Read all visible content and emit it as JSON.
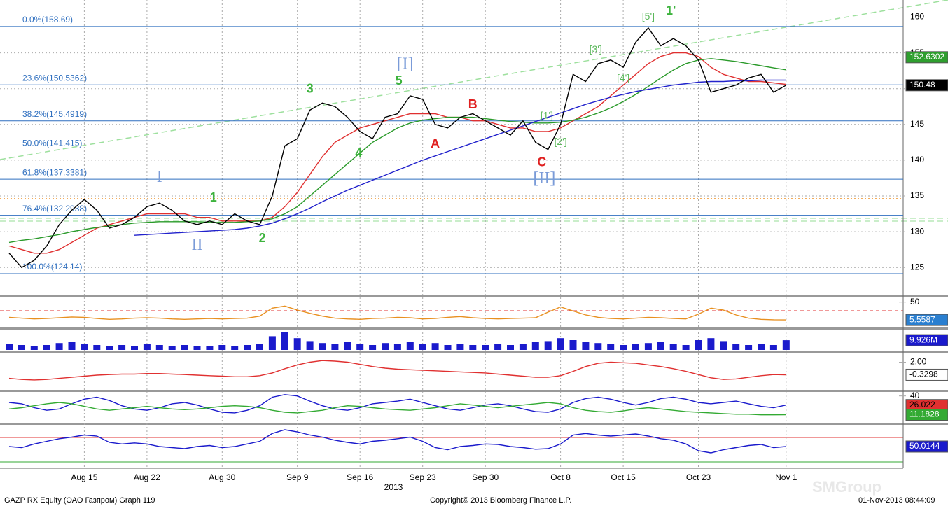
{
  "chart_data": [
    {
      "type": "line",
      "categories": [
        null,
        null,
        null,
        null,
        null,
        null,
        "Aug 15",
        null,
        null,
        null,
        null,
        "Aug 22",
        null,
        null,
        null,
        null,
        null,
        "Aug 30",
        null,
        null,
        null,
        null,
        null,
        "Sep 9",
        null,
        null,
        null,
        null,
        "Sep 16",
        null,
        null,
        null,
        null,
        "Sep 23",
        null,
        null,
        null,
        null,
        "Sep 30",
        null,
        null,
        null,
        null,
        null,
        "Oct 8",
        null,
        null,
        null,
        null,
        "Oct 15",
        null,
        null,
        null,
        null,
        null,
        "Oct 23",
        null,
        null,
        null,
        null,
        null,
        null,
        "Nov 1"
      ],
      "x_year_label": "2013",
      "ylim": [
        121.3,
        162.4
      ],
      "yticks": [
        125,
        130,
        135,
        140,
        145,
        150,
        155,
        160
      ],
      "grid": true,
      "series": [
        {
          "color": "#e03030",
          "values": [
            128,
            127.5,
            127,
            127,
            127.5,
            128.5,
            129.5,
            130.5,
            131,
            131.5,
            132,
            132.5,
            132.5,
            132.5,
            132.5,
            132,
            132,
            131.5,
            131.5,
            131.5,
            131.5,
            132,
            133.5,
            135.5,
            138,
            140.5,
            142.5,
            143.5,
            144.5,
            145,
            145.5,
            146,
            146.5,
            146.5,
            146.5,
            146,
            146,
            145.5,
            145.5,
            145,
            144.5,
            144.5,
            144,
            144,
            144.5,
            145.5,
            146.5,
            147.5,
            149,
            150.5,
            152,
            153.5,
            154.5,
            155,
            155,
            154.5,
            153,
            152,
            151.5,
            151,
            151,
            150.8,
            150.6
          ]
        },
        {
          "color": "#2a9a2a",
          "label_color": "#2e9e2e",
          "values": [
            128.5,
            128.8,
            129,
            129.3,
            129.6,
            130,
            130.3,
            130.6,
            130.8,
            131,
            131.2,
            131.3,
            131.4,
            131.4,
            131.4,
            131.4,
            131.3,
            131.3,
            131.3,
            131.4,
            131.5,
            131.8,
            132.5,
            133.5,
            135,
            136.5,
            138,
            139.5,
            141,
            142.5,
            143.5,
            144.5,
            145.2,
            145.6,
            145.8,
            146,
            146,
            146,
            145.8,
            145.6,
            145.4,
            145.3,
            145.2,
            145.2,
            145.3,
            145.6,
            146,
            146.6,
            147.3,
            148.2,
            149.2,
            150.3,
            151.5,
            152.6,
            153.5,
            154,
            154.2,
            154,
            153.8,
            153.5,
            153.2,
            152.9,
            152.6302
          ]
        },
        {
          "color": "#2222cc",
          "values": [
            null,
            null,
            null,
            null,
            null,
            null,
            null,
            null,
            null,
            null,
            129.5,
            129.6,
            129.7,
            129.8,
            129.9,
            130,
            130.1,
            130.2,
            130.3,
            130.5,
            130.8,
            131.2,
            131.8,
            132.5,
            133.3,
            134.2,
            135,
            135.8,
            136.5,
            137.2,
            137.9,
            138.6,
            139.3,
            140,
            140.6,
            141.2,
            141.8,
            142.4,
            143,
            143.6,
            144.2,
            144.8,
            145.4,
            146,
            146.6,
            147.2,
            147.8,
            148.3,
            148.8,
            149.2,
            149.6,
            149.9,
            150.2,
            150.5,
            150.7,
            150.9,
            151,
            151,
            151.1,
            151.1,
            151.2,
            151.2,
            151.2
          ]
        },
        {
          "color": "#000000",
          "label_color": "#000000",
          "values": [
            127,
            125,
            126,
            128,
            131,
            133,
            134.5,
            133,
            130.5,
            131,
            132,
            133.5,
            134,
            133,
            131.5,
            131,
            131.5,
            131,
            132.5,
            131.5,
            131,
            135,
            142,
            143,
            147,
            148,
            147.5,
            146,
            144,
            143,
            146,
            146.5,
            149,
            148.5,
            145,
            144.5,
            146,
            146.5,
            145.5,
            144.5,
            143.5,
            145.5,
            142.5,
            141.5,
            145,
            152,
            151,
            153.5,
            154,
            153,
            156.5,
            158.5,
            156,
            157,
            156,
            154,
            149.5,
            150,
            150.5,
            151.5,
            152,
            149.5,
            150.48
          ]
        }
      ],
      "fib_levels": [
        {
          "label": "0.0%(158.69)",
          "value": 158.69
        },
        {
          "label": "23.6%(150.5362)",
          "value": 150.5362
        },
        {
          "label": "38.2%(145.4919)",
          "value": 145.4919
        },
        {
          "label": "50.0%(141.415)",
          "value": 141.415
        },
        {
          "label": "61.8%(137.3381)",
          "value": 137.3381
        },
        {
          "label": "76.4%(132.2938)",
          "value": 132.2938
        },
        {
          "label": "100.0%(124.14)",
          "value": 124.14
        }
      ],
      "annotations": [
        {
          "text": "I",
          "x": 12,
          "y": 137.5,
          "color": "#7a9bd8"
        },
        {
          "text": "II",
          "x": 15,
          "y": 128,
          "color": "#7a9bd8"
        },
        {
          "text": "1",
          "x": 16.3,
          "y": 134.7,
          "color": "#3db33d"
        },
        {
          "text": "2",
          "x": 20.2,
          "y": 129,
          "color": "#3db33d"
        },
        {
          "text": "3",
          "x": 24,
          "y": 149.9,
          "color": "#3db33d"
        },
        {
          "text": "4",
          "x": 27.9,
          "y": 140.9,
          "color": "#3db33d"
        },
        {
          "text": "5",
          "x": 31.1,
          "y": 151,
          "color": "#3db33d"
        },
        {
          "text": "[I]",
          "x": 31.6,
          "y": 153.3,
          "color": "#7a9bd8"
        },
        {
          "text": "A",
          "x": 34,
          "y": 142.2,
          "color": "#e02020"
        },
        {
          "text": "B",
          "x": 37,
          "y": 147.7,
          "color": "#e02020"
        },
        {
          "text": "C",
          "x": 42.5,
          "y": 139.6,
          "color": "#e02020"
        },
        {
          "text": "[II]",
          "x": 42.7,
          "y": 137.3,
          "color": "#7a9bd8"
        },
        {
          "text": "[1']",
          "x": 42.9,
          "y": 146.2,
          "color": "#5bb85b"
        },
        {
          "text": "[2']",
          "x": 44,
          "y": 142.5,
          "color": "#5bb85b"
        },
        {
          "text": "[3']",
          "x": 46.8,
          "y": 155.4,
          "color": "#5bb85b"
        },
        {
          "text": "[4']",
          "x": 49,
          "y": 151.4,
          "color": "#5bb85b"
        },
        {
          "text": "[5']",
          "x": 51,
          "y": 160,
          "color": "#5bb85b"
        },
        {
          "text": "1'",
          "x": 52.8,
          "y": 160.8,
          "color": "#3db33d"
        }
      ]
    },
    {
      "type": "line",
      "ylim": [
        -10,
        60
      ],
      "yticks": [
        50
      ],
      "series": [
        {
          "color": "#e89020",
          "label_color": "#2a7fd0",
          "values": [
            12,
            10,
            8,
            9,
            11,
            13,
            12,
            9,
            7,
            8,
            10,
            11,
            10,
            8,
            7,
            8,
            9,
            8,
            9,
            10,
            15,
            35,
            40,
            30,
            22,
            15,
            10,
            8,
            7,
            9,
            10,
            12,
            11,
            8,
            9,
            12,
            14,
            11,
            9,
            8,
            9,
            10,
            11,
            25,
            38,
            28,
            18,
            12,
            9,
            8,
            10,
            12,
            11,
            9,
            8,
            20,
            35,
            30,
            18,
            10,
            7,
            6,
            5.5587
          ]
        }
      ]
    },
    {
      "type": "bar",
      "ylim": [
        0,
        20
      ],
      "series": [
        {
          "color": "#1a1acc",
          "label_color": "#1a1acc",
          "values": [
            6,
            5,
            4,
            5,
            7,
            8,
            6,
            5,
            4,
            5,
            4,
            6,
            5,
            4,
            5,
            4,
            4,
            5,
            4,
            5,
            6,
            14,
            18,
            12,
            9,
            7,
            6,
            8,
            6,
            5,
            7,
            6,
            8,
            6,
            7,
            5,
            6,
            5,
            5,
            6,
            5,
            6,
            8,
            9,
            12,
            10,
            8,
            7,
            6,
            5,
            6,
            7,
            8,
            6,
            5,
            10,
            12,
            9,
            6,
            5,
            6,
            5,
            9.926
          ],
          "value_labels": [
            null,
            null,
            null,
            null,
            null,
            null,
            null,
            null,
            null,
            null,
            null,
            null,
            null,
            null,
            null,
            null,
            null,
            null,
            null,
            null,
            null,
            null,
            null,
            null,
            null,
            null,
            null,
            null,
            null,
            null,
            null,
            null,
            null,
            null,
            null,
            null,
            null,
            null,
            null,
            null,
            null,
            null,
            null,
            null,
            null,
            null,
            null,
            null,
            null,
            null,
            null,
            null,
            null,
            null,
            null,
            null,
            null,
            null,
            null,
            null,
            null,
            null,
            "9.926M"
          ]
        }
      ]
    },
    {
      "type": "line",
      "ylim": [
        -3,
        3.5
      ],
      "yticks": [
        {
          "value": 2,
          "label": "2.00"
        }
      ],
      "series": [
        {
          "color": "#e03030",
          "label_color": "#ffffff",
          "values": [
            -1,
            -1.2,
            -1.3,
            -1.2,
            -1,
            -0.8,
            -0.6,
            -0.4,
            -0.3,
            -0.2,
            -0.2,
            -0.1,
            -0.1,
            -0.2,
            -0.3,
            -0.4,
            -0.5,
            -0.6,
            -0.7,
            -0.7,
            -0.5,
            0,
            0.8,
            1.5,
            2,
            2.3,
            2.2,
            2,
            1.6,
            1.2,
            0.9,
            0.7,
            0.6,
            0.5,
            0.4,
            0.3,
            0.2,
            0.1,
            0,
            -0.2,
            -0.4,
            -0.6,
            -0.8,
            -0.8,
            -0.5,
            0.3,
            1.2,
            1.8,
            2.0,
            1.9,
            1.8,
            1.5,
            1.2,
            0.8,
            0.3,
            -0.3,
            -0.9,
            -1.2,
            -1.1,
            -0.8,
            -0.5,
            -0.3,
            -0.3298
          ]
        }
      ]
    },
    {
      "type": "line",
      "ylim": [
        0,
        45
      ],
      "yticks": [
        40
      ],
      "series": [
        {
          "color": "#1a1acc",
          "label_color": "#e03030",
          "values": [
            30,
            28,
            22,
            18,
            20,
            28,
            35,
            38,
            33,
            25,
            20,
            18,
            22,
            28,
            30,
            26,
            20,
            15,
            14,
            18,
            25,
            38,
            42,
            40,
            32,
            25,
            20,
            18,
            22,
            28,
            30,
            32,
            35,
            30,
            25,
            20,
            18,
            22,
            26,
            28,
            25,
            20,
            16,
            15,
            20,
            30,
            36,
            38,
            35,
            30,
            26,
            30,
            36,
            38,
            35,
            30,
            28,
            30,
            32,
            28,
            24,
            22,
            26.022
          ]
        },
        {
          "color": "#33aa33",
          "label_color": "#33aa33",
          "values": [
            20,
            22,
            25,
            28,
            30,
            28,
            24,
            20,
            18,
            20,
            22,
            24,
            22,
            20,
            19,
            20,
            22,
            24,
            25,
            24,
            22,
            18,
            15,
            14,
            16,
            18,
            22,
            25,
            24,
            22,
            20,
            19,
            18,
            20,
            22,
            25,
            28,
            26,
            24,
            22,
            24,
            26,
            28,
            30,
            28,
            22,
            18,
            16,
            15,
            17,
            20,
            22,
            20,
            18,
            16,
            15,
            14,
            13,
            12,
            12,
            11,
            11,
            11.1828
          ]
        }
      ]
    },
    {
      "type": "line",
      "ylim": [
        10,
        90
      ],
      "series": [
        {
          "color": "#1a1acc",
          "label_color": "#1a1acc",
          "values": [
            50,
            48,
            55,
            60,
            65,
            68,
            72,
            70,
            58,
            55,
            57,
            55,
            50,
            48,
            46,
            50,
            52,
            48,
            50,
            55,
            60,
            75,
            82,
            78,
            72,
            68,
            62,
            58,
            55,
            60,
            62,
            65,
            68,
            60,
            48,
            44,
            50,
            52,
            55,
            54,
            50,
            48,
            45,
            46,
            55,
            72,
            75,
            72,
            70,
            72,
            74,
            70,
            65,
            62,
            55,
            42,
            38,
            44,
            48,
            52,
            54,
            48,
            50.0144
          ]
        }
      ]
    }
  ],
  "footer": {
    "left": "GAZP RX Equity (ОАО Газпром) Graph 119",
    "center": "Copyright© 2013 Bloomberg Finance L.P.",
    "right": "01-Nov-2013 08:44:09",
    "watermark": "SMGroup"
  }
}
